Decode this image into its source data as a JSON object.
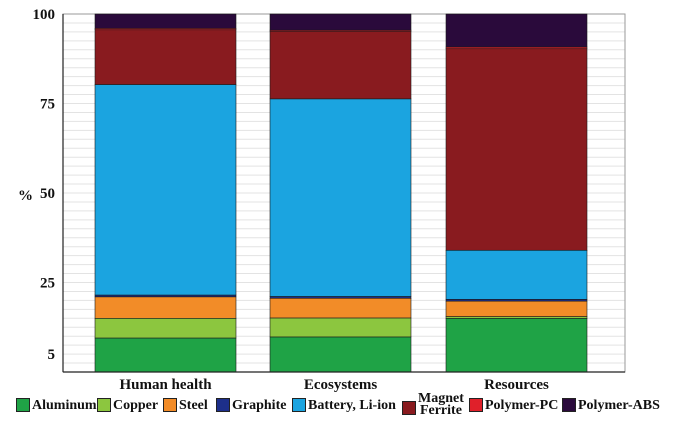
{
  "chart_data": {
    "type": "bar",
    "stacked": true,
    "ylabel": "%",
    "ylim": [
      0,
      100
    ],
    "yticks": [
      "5",
      "25",
      "50",
      "75",
      "100"
    ],
    "ytick_values": [
      5,
      25,
      50,
      75,
      100
    ],
    "grid": true,
    "legend_position": "bottom",
    "categories": [
      "Human health",
      "Ecosystems",
      "Resources"
    ],
    "series": [
      {
        "name": "Aluminum",
        "color": "#1fa346",
        "values": [
          9.5,
          9.8,
          15.0
        ]
      },
      {
        "name": "Copper",
        "color": "#8cc63f",
        "values": [
          5.5,
          5.3,
          0.5
        ]
      },
      {
        "name": "Steel",
        "color": "#f28c28",
        "values": [
          6.0,
          5.5,
          4.3
        ]
      },
      {
        "name": "Graphite",
        "color": "#1d2f8a",
        "values": [
          0.5,
          0.5,
          0.5
        ]
      },
      {
        "name": "Battery, Li-ion",
        "color": "#1ba4e0",
        "values": [
          58.8,
          55.2,
          13.7
        ]
      },
      {
        "name": "Magnet Ferrite",
        "color": "#891b1f",
        "values": [
          15.3,
          18.9,
          56.3
        ]
      },
      {
        "name": "Polymer-PC",
        "color": "#e0202a",
        "values": [
          0.4,
          0.3,
          0.5
        ]
      },
      {
        "name": "Polymer-ABS",
        "color": "#2a0a3b",
        "values": [
          4.0,
          4.5,
          9.2
        ]
      }
    ]
  },
  "legend": {
    "items": [
      {
        "label": "Aluminum"
      },
      {
        "label": "Copper"
      },
      {
        "label": "Steel"
      },
      {
        "label": "Graphite"
      },
      {
        "label": "Battery, Li-ion"
      },
      {
        "label_line1": "Magnet",
        "label_line2": "Ferrite"
      },
      {
        "label": "Polymer-PC"
      },
      {
        "label": "Polymer-ABS"
      }
    ]
  }
}
